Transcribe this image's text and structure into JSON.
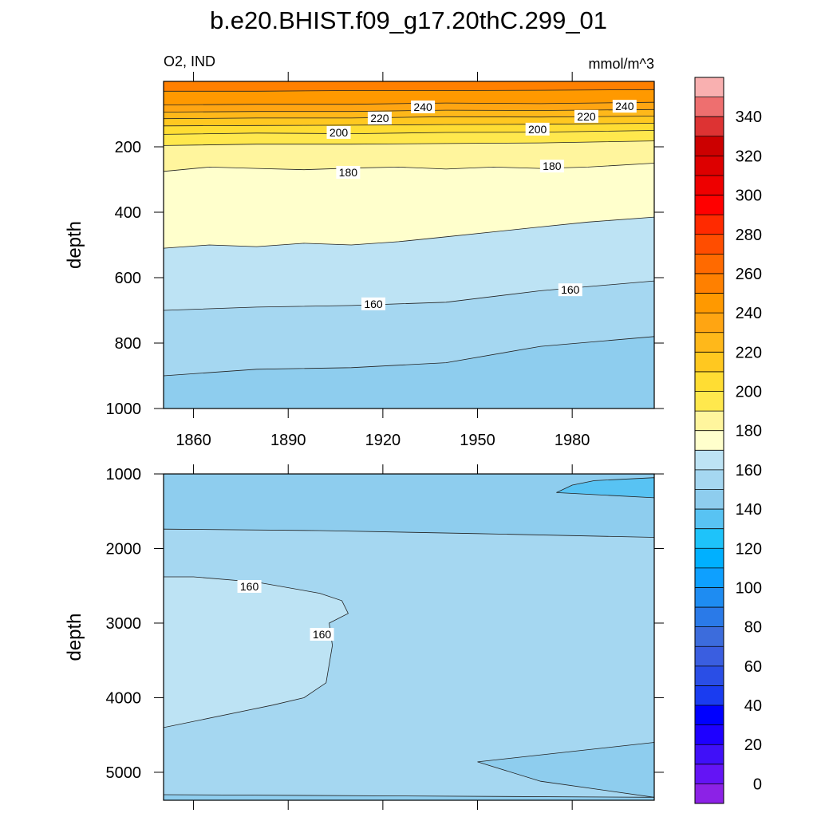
{
  "chart_data": [
    {
      "type": "contour",
      "title": "b.e20.BHIST.f09_g17.20thC.299_01",
      "subtitle_left": "O2, IND",
      "subtitle_right": "mmol/m^3",
      "ylabel": "depth",
      "xlim": [
        1850.5,
        2006
      ],
      "ylim": [
        0,
        1000
      ],
      "y_reversed": true,
      "xticks": [
        1860,
        1890,
        1920,
        1950,
        1980
      ],
      "xtick_labels": true,
      "yticks": [
        200,
        400,
        600,
        800,
        1000
      ],
      "base": 250,
      "contours": [
        {
          "level": 250,
          "band": 240,
          "closed": false,
          "x": [
            1850.5,
            1880,
            1910,
            1940,
            1970,
            2006
          ],
          "y": [
            30,
            30,
            28,
            28,
            27,
            25
          ]
        },
        {
          "level": 240,
          "band": 230,
          "closed": false,
          "x": [
            1850.5,
            1880,
            1910,
            1940,
            1970,
            2006
          ],
          "y": [
            72,
            70,
            70,
            66,
            68,
            64
          ]
        },
        {
          "level": 230,
          "band": 220,
          "closed": false,
          "x": [
            1850.5,
            1880,
            1910,
            1940,
            1970,
            2006
          ],
          "y": [
            94,
            92,
            92,
            88,
            89,
            86
          ]
        },
        {
          "level": 220,
          "band": 210,
          "closed": false,
          "x": [
            1850.5,
            1880,
            1910,
            1940,
            1970,
            2006
          ],
          "y": [
            114,
            112,
            112,
            108,
            109,
            106
          ]
        },
        {
          "level": 210,
          "band": 200,
          "closed": false,
          "x": [
            1850.5,
            1880,
            1910,
            1940,
            1970,
            2006
          ],
          "y": [
            136,
            135,
            134,
            132,
            131,
            128
          ]
        },
        {
          "level": 200,
          "band": 190,
          "closed": false,
          "x": [
            1850.5,
            1880,
            1910,
            1940,
            1970,
            2006
          ],
          "y": [
            162,
            158,
            160,
            156,
            155,
            150
          ]
        },
        {
          "level": 190,
          "band": 180,
          "closed": false,
          "x": [
            1850.5,
            1880,
            1910,
            1940,
            1970,
            2006
          ],
          "y": [
            196,
            192,
            192,
            190,
            188,
            182
          ]
        },
        {
          "level": 180,
          "band": 170,
          "closed": false,
          "x": [
            1850.5,
            1865,
            1880,
            1895,
            1910,
            1925,
            1940,
            1955,
            1970,
            1985,
            2006
          ],
          "y": [
            275,
            262,
            266,
            270,
            265,
            262,
            268,
            262,
            266,
            262,
            250
          ]
        },
        {
          "level": 170,
          "band": 160,
          "closed": false,
          "x": [
            1850.5,
            1865,
            1880,
            1895,
            1910,
            1925,
            1940,
            1955,
            1970,
            1985,
            2006
          ],
          "y": [
            510,
            500,
            505,
            495,
            500,
            490,
            475,
            460,
            445,
            430,
            415
          ]
        },
        {
          "level": 160,
          "band": 150,
          "closed": false,
          "x": [
            1850.5,
            1880,
            1910,
            1940,
            1970,
            2006
          ],
          "y": [
            700,
            690,
            685,
            675,
            640,
            610
          ]
        },
        {
          "level": 150,
          "band": 140,
          "closed": false,
          "x": [
            1850.5,
            1880,
            1910,
            1940,
            1970,
            2006
          ],
          "y": [
            900,
            880,
            875,
            860,
            810,
            780
          ]
        }
      ],
      "labels": [
        {
          "level": 240,
          "x": 1932.7,
          "y": 78
        },
        {
          "level": 220,
          "x": 1919,
          "y": 112
        },
        {
          "level": 200,
          "x": 1906,
          "y": 156
        },
        {
          "level": 180,
          "x": 1909,
          "y": 278
        },
        {
          "level": 240,
          "x": 1996.6,
          "y": 76
        },
        {
          "level": 220,
          "x": 1984.5,
          "y": 107
        },
        {
          "level": 200,
          "x": 1969,
          "y": 146
        },
        {
          "level": 180,
          "x": 1973.6,
          "y": 259
        },
        {
          "level": 160,
          "x": 1917,
          "y": 680
        },
        {
          "level": 160,
          "x": 1979.4,
          "y": 637
        }
      ]
    },
    {
      "type": "contour",
      "ylabel": "depth",
      "xlim": [
        1850.5,
        2006
      ],
      "ylim": [
        1000,
        5375
      ],
      "y_reversed": true,
      "xticks": [
        1860,
        1890,
        1920,
        1950,
        1980
      ],
      "xtick_labels": false,
      "yticks": [
        1000,
        2000,
        3000,
        4000,
        5000
      ],
      "base": 140,
      "contours": [
        {
          "level": 150,
          "band": 150,
          "closed": false,
          "x": [
            1850.5,
            1900,
            1950,
            2006
          ],
          "y": [
            1740,
            1760,
            1800,
            1850
          ]
        },
        {
          "level": 160,
          "band": 160,
          "closed": true,
          "x": [
            1850.5,
            1860,
            1880,
            1900,
            1907,
            1909,
            1903,
            1904,
            1902,
            1895,
            1885,
            1850.5
          ],
          "y": [
            2380,
            2380,
            2450,
            2600,
            2700,
            2870,
            3000,
            3300,
            3800,
            4000,
            4100,
            4400
          ]
        },
        {
          "level": 140,
          "band": 130,
          "closed": true,
          "x": [
            1975,
            1980,
            1987,
            2006,
            2006
          ],
          "y": [
            1250,
            1150,
            1090,
            1050,
            1320
          ]
        },
        {
          "level": 150,
          "band": 140,
          "closed": true,
          "x": [
            1950,
            2006,
            2006,
            1970
          ],
          "y": [
            4860,
            4600,
            5335,
            5120
          ]
        },
        {
          "level": 150,
          "band": 140,
          "closed": false,
          "x": [
            1850.5,
            2006
          ],
          "y": [
            5300,
            5335
          ]
        }
      ],
      "labels": [
        {
          "level": 160,
          "x": 1877.7,
          "y": 2508
        },
        {
          "level": 160,
          "x": 1900.7,
          "y": 3150
        }
      ]
    }
  ],
  "colorbar": {
    "levels": [
      0,
      10,
      20,
      30,
      40,
      50,
      60,
      70,
      80,
      90,
      100,
      110,
      120,
      130,
      140,
      150,
      160,
      170,
      180,
      190,
      200,
      210,
      220,
      230,
      240,
      250,
      260,
      270,
      280,
      290,
      300,
      310,
      320,
      330,
      340,
      350
    ],
    "colors": [
      "#8c22e6",
      "#6414f5",
      "#4010f8",
      "#1e00ff",
      "#0000ff",
      "#1a3cf0",
      "#2a4ee6",
      "#3a5ee0",
      "#3c6cdc",
      "#2a7ae8",
      "#1e8cf2",
      "#0ea0ff",
      "#00b0ff",
      "#1ec3fa",
      "#58c3f3",
      "#8ecdee",
      "#a5d7f1",
      "#bde3f4",
      "#ffffcc",
      "#fff59d",
      "#ffe84d",
      "#ffdd33",
      "#ffc820",
      "#ffb81a",
      "#ffa512",
      "#ff9900",
      "#ff8000",
      "#ff6a00",
      "#ff4d00",
      "#ff2a00",
      "#ff0000",
      "#ee0000",
      "#dd0000",
      "#cc0000",
      "#dd3333",
      "#ee6f6f",
      "#f9b0b0"
    ],
    "ticks": [
      0,
      20,
      40,
      60,
      80,
      100,
      120,
      140,
      160,
      180,
      200,
      220,
      240,
      260,
      280,
      300,
      320,
      340
    ]
  }
}
